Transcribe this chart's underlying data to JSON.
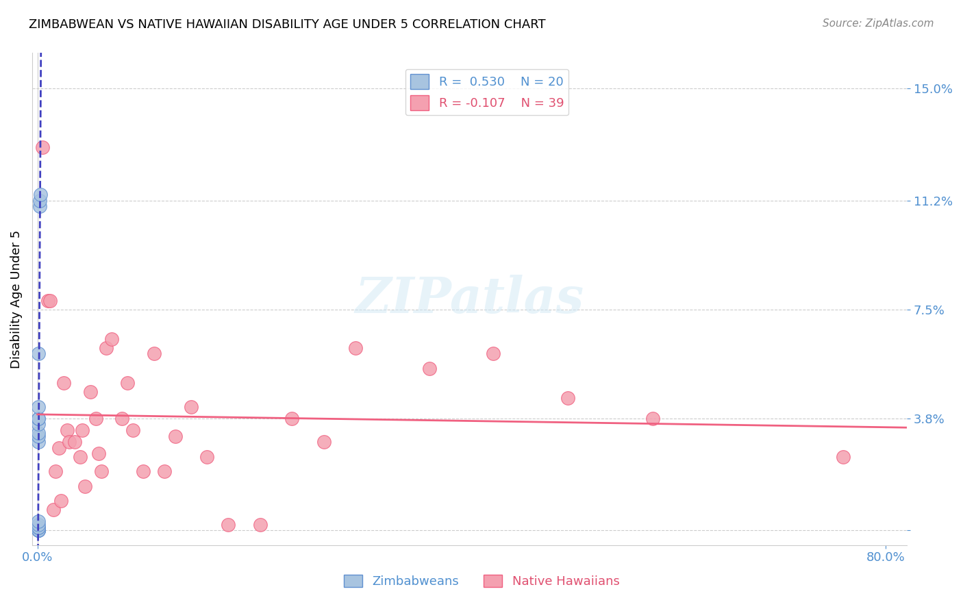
{
  "title": "ZIMBABWEAN VS NATIVE HAWAIIAN DISABILITY AGE UNDER 5 CORRELATION CHART",
  "source": "Source: ZipAtlas.com",
  "xlabel_ticks": [
    "0.0%",
    "80.0%"
  ],
  "ylabel_label": "Disability Age Under 5",
  "ylabel_ticks": [
    0.0,
    0.038,
    0.075,
    0.112,
    0.15
  ],
  "ylabel_tick_labels": [
    "",
    "3.8%",
    "7.5%",
    "11.2%",
    "15.0%"
  ],
  "xlim": [
    -0.005,
    0.82
  ],
  "ylim": [
    -0.005,
    0.162
  ],
  "legend_r_blue": "R =  0.530",
  "legend_n_blue": "N = 20",
  "legend_r_pink": "R = -0.107",
  "legend_n_pink": "N = 39",
  "blue_color": "#a8c4e0",
  "pink_color": "#f4a0b0",
  "trendline_blue_color": "#4040c0",
  "trendline_pink_color": "#f06080",
  "watermark": "ZIPatlas",
  "zimbabwean_x": [
    0.001,
    0.001,
    0.001,
    0.001,
    0.001,
    0.001,
    0.001,
    0.001,
    0.001,
    0.001,
    0.001,
    0.001,
    0.001,
    0.001,
    0.001,
    0.001,
    0.001,
    0.002,
    0.002,
    0.003
  ],
  "zimbabwean_y": [
    0.0,
    0.0,
    0.0,
    0.0,
    0.0,
    0.001,
    0.001,
    0.002,
    0.003,
    0.03,
    0.032,
    0.033,
    0.036,
    0.038,
    0.038,
    0.042,
    0.06,
    0.11,
    0.112,
    0.114
  ],
  "nativehawaiian_x": [
    0.005,
    0.01,
    0.012,
    0.015,
    0.017,
    0.02,
    0.022,
    0.025,
    0.028,
    0.03,
    0.035,
    0.04,
    0.042,
    0.045,
    0.05,
    0.055,
    0.058,
    0.06,
    0.065,
    0.07,
    0.08,
    0.085,
    0.09,
    0.1,
    0.11,
    0.12,
    0.13,
    0.145,
    0.16,
    0.18,
    0.21,
    0.24,
    0.27,
    0.3,
    0.37,
    0.43,
    0.5,
    0.58,
    0.76
  ],
  "nativehawaiian_y": [
    0.13,
    0.078,
    0.078,
    0.007,
    0.02,
    0.028,
    0.01,
    0.05,
    0.034,
    0.03,
    0.03,
    0.025,
    0.034,
    0.015,
    0.047,
    0.038,
    0.026,
    0.02,
    0.062,
    0.065,
    0.038,
    0.05,
    0.034,
    0.02,
    0.06,
    0.02,
    0.032,
    0.042,
    0.025,
    0.002,
    0.002,
    0.038,
    0.03,
    0.062,
    0.055,
    0.06,
    0.045,
    0.038,
    0.025
  ]
}
